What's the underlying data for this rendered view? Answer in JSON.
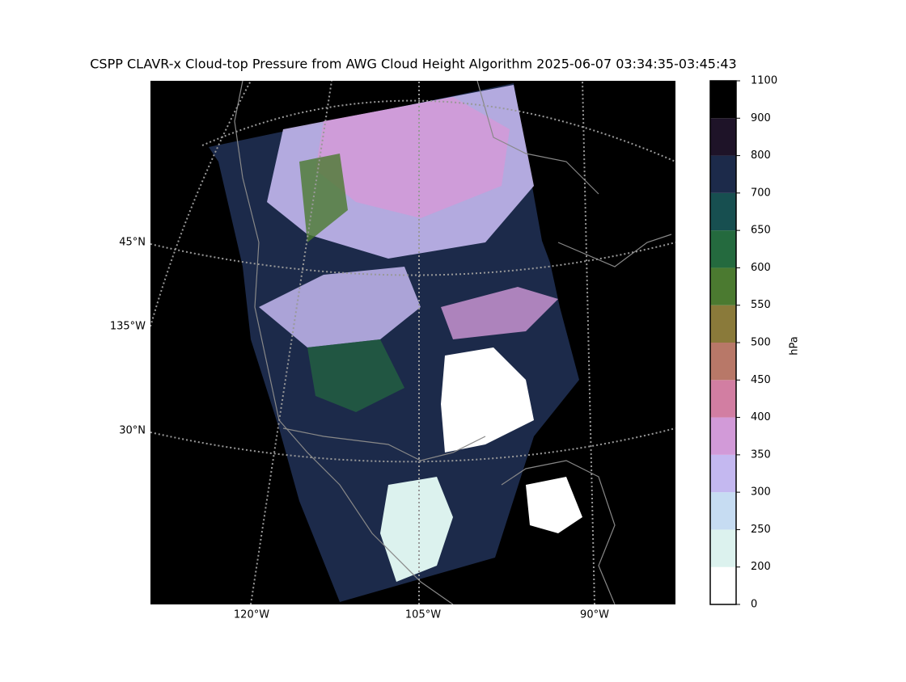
{
  "title": "CSPP CLAVR-x Cloud-top Pressure from AWG Cloud Height Algorithm 2025-06-07 03:34:35-03:45:43",
  "map": {
    "lat_labels": [
      "45°N",
      "135°W",
      "30°N"
    ],
    "lon_labels": [
      "120°W",
      "105°W",
      "90°W"
    ]
  },
  "colorbar": {
    "label": "hPa",
    "boundaries": [
      0,
      200,
      250,
      300,
      350,
      400,
      450,
      500,
      550,
      600,
      650,
      700,
      800,
      900,
      1100
    ],
    "colors": [
      "#ffffff",
      "#dcf2ee",
      "#c6dcf2",
      "#c4b8f0",
      "#d29ad8",
      "#d27ea2",
      "#b87868",
      "#8a7a3a",
      "#4b7a30",
      "#246a3e",
      "#174f50",
      "#1c2a4a",
      "#1e1328",
      "#000000"
    ]
  }
}
